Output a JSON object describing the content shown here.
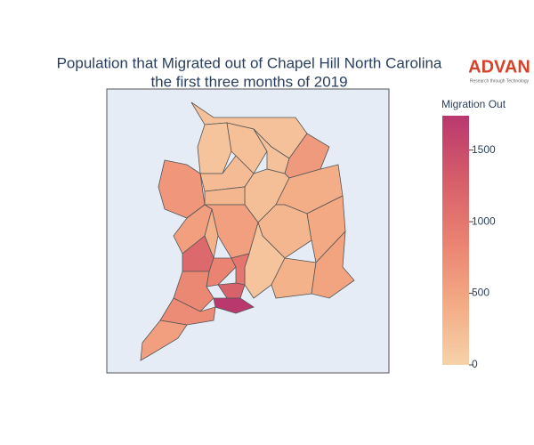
{
  "chart_data": {
    "type": "choropleth",
    "title": "Population that Migrated out of Chapel Hill North Carolina",
    "subtitle": "the first three months of 2019",
    "logo": "ADVAN",
    "logo_tagline": "Research through Technology",
    "colorbar_title": "Migration Out",
    "values": [
      180,
      150,
      200,
      180,
      600,
      250,
      220,
      300,
      650,
      400,
      300,
      450,
      550,
      550,
      350,
      150,
      350,
      500,
      1150,
      850,
      1000,
      800,
      1250,
      1737,
      750,
      550
    ],
    "zlim": [
      0,
      1740
    ],
    "zticks": [
      0,
      500,
      1000,
      1500
    ],
    "colorscale": [
      "#f6d2a9",
      "#f3aa84",
      "#ea8171",
      "#d55d6a",
      "#b9386e"
    ]
  }
}
